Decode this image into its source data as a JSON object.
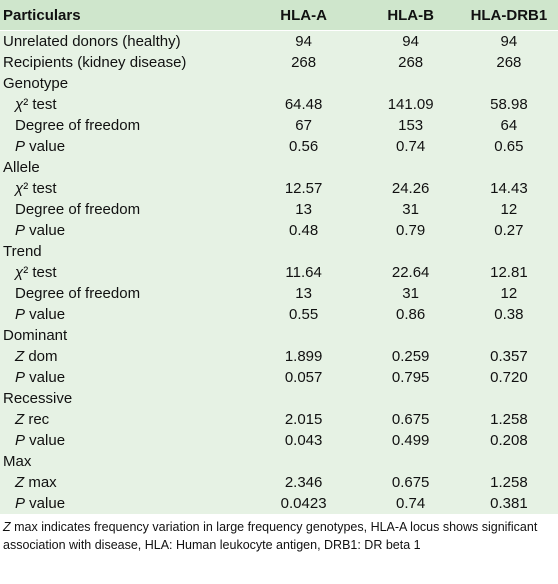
{
  "table": {
    "header": [
      "Particulars",
      "HLA-A",
      "HLA-B",
      "HLA-DRB1"
    ],
    "rows": [
      {
        "label": "Unrelated donors (healthy)",
        "values": [
          "94",
          "94",
          "94"
        ]
      },
      {
        "label": "Recipients (kidney disease)",
        "values": [
          "268",
          "268",
          "268"
        ]
      },
      {
        "label": "Genotype"
      },
      {
        "label": [
          "χ",
          "² test"
        ],
        "indent": true,
        "values": [
          "64.48",
          "141.09",
          "58.98"
        ]
      },
      {
        "label": "Degree of freedom",
        "indent": true,
        "values": [
          "67",
          "153",
          "64"
        ]
      },
      {
        "label": [
          "P",
          " value"
        ],
        "indent": true,
        "values": [
          "0.56",
          "0.74",
          "0.65"
        ]
      },
      {
        "label": "Allele"
      },
      {
        "label": [
          "χ",
          "² test"
        ],
        "indent": true,
        "values": [
          "12.57",
          "24.26",
          "14.43"
        ]
      },
      {
        "label": "Degree of freedom",
        "indent": true,
        "values": [
          "13",
          "31",
          "12"
        ]
      },
      {
        "label": [
          "P",
          " value"
        ],
        "indent": true,
        "values": [
          "0.48",
          "0.79",
          "0.27"
        ]
      },
      {
        "label": "Trend"
      },
      {
        "label": [
          "χ",
          "² test"
        ],
        "indent": true,
        "values": [
          "11.64",
          "22.64",
          "12.81"
        ]
      },
      {
        "label": "Degree of freedom",
        "indent": true,
        "values": [
          "13",
          "31",
          "12"
        ]
      },
      {
        "label": [
          "P",
          " value"
        ],
        "indent": true,
        "values": [
          "0.55",
          "0.86",
          "0.38"
        ]
      },
      {
        "label": "Dominant"
      },
      {
        "label": [
          "Z",
          " dom"
        ],
        "indent": true,
        "values": [
          "1.899",
          "0.259",
          "0.357"
        ]
      },
      {
        "label": [
          "P",
          " value"
        ],
        "indent": true,
        "values": [
          "0.057",
          "0.795",
          "0.720"
        ]
      },
      {
        "label": "Recessive"
      },
      {
        "label": [
          "Z",
          " rec"
        ],
        "indent": true,
        "values": [
          "2.015",
          "0.675",
          "1.258"
        ]
      },
      {
        "label": [
          "P",
          " value"
        ],
        "indent": true,
        "values": [
          "0.043",
          "0.499",
          "0.208"
        ]
      },
      {
        "label": "Max"
      },
      {
        "label": [
          "Z",
          " max"
        ],
        "indent": true,
        "values": [
          "2.346",
          "0.675",
          "1.258"
        ]
      },
      {
        "label": [
          "P",
          " value"
        ],
        "indent": true,
        "values": [
          "0.0423",
          "0.74",
          "0.381"
        ]
      }
    ],
    "footnote": [
      "Z",
      " max indicates frequency variation in large frequency genotypes, HLA-A locus shows significant association with disease, HLA: Human leukocyte antigen, DRB1: DR beta 1"
    ]
  }
}
